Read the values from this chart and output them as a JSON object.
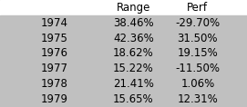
{
  "headers": [
    "",
    "Range",
    "Perf"
  ],
  "rows": [
    [
      "1974",
      "38.46%",
      "-29.70%"
    ],
    [
      "1975",
      "42.36%",
      "31.50%"
    ],
    [
      "1976",
      "18.62%",
      "19.15%"
    ],
    [
      "1977",
      "15.22%",
      "-11.50%"
    ],
    [
      "1978",
      "21.41%",
      "1.06%"
    ],
    [
      "1979",
      "15.65%",
      "12.31%"
    ]
  ],
  "background_color": "#c0c0c0",
  "header_background": "#ffffff",
  "row_background": "#c0c0c0",
  "text_color": "#000000",
  "font_size": 8.5,
  "fig_width": 2.71,
  "fig_height": 1.18
}
